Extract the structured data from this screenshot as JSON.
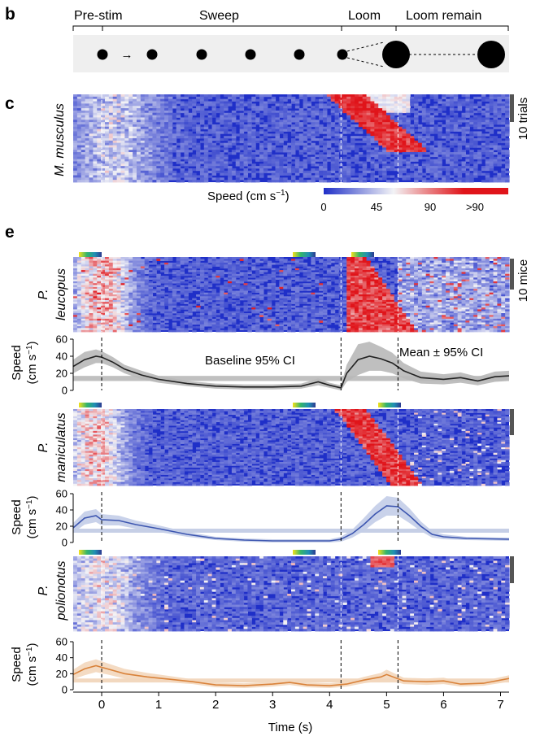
{
  "panels": {
    "b": "b",
    "c": "c",
    "e": "e"
  },
  "stimulus": {
    "phases": [
      "Pre-stim",
      "Sweep",
      "Loom",
      "Loom remain"
    ],
    "arrow": "→"
  },
  "colorbar": {
    "label": "Speed (cm s",
    "label_exp": "−1",
    "label_close": ")",
    "ticks": [
      "0",
      "45",
      "90",
      ">90"
    ]
  },
  "species": {
    "musculus": "M. musculus",
    "leucopus_1": "P.",
    "leucopus_2": "leucopus",
    "maniculatus_1": "P.",
    "maniculatus_2": "maniculatus",
    "polionotus_1": "P.",
    "polionotus_2": "polionotus"
  },
  "scalebars": {
    "trials": "10 trials",
    "mice": "10 mice"
  },
  "speed_axis": {
    "label_1": "Speed",
    "label_2": "(cm s",
    "label_exp": "−1",
    "label_close": ")"
  },
  "annotations": {
    "baseline": "Baseline 95% CI",
    "mean": "Mean ± 95% CI"
  },
  "colors": {
    "heatmap_low": "#1f2fc8",
    "heatmap_mid": "#f3f3f6",
    "heatmap_high": "#e0141a",
    "leucopus": "#222222",
    "maniculatus": "#3d56b0",
    "polionotus": "#d9823a",
    "leucopus_band": "#c0c0c0",
    "maniculatus_band": "#c6cfe6",
    "polionotus_band": "#f2d8bf"
  },
  "chart_data": [
    {
      "type": "line",
      "title": "P. leucopus",
      "xlabel": "Time (s)",
      "ylabel": "Speed (cm s−1)",
      "xlim": [
        -0.5,
        7.15
      ],
      "ylim": [
        0,
        60
      ],
      "x_ticks": [
        "0",
        "1",
        "2",
        "3",
        "4",
        "5",
        "6",
        "7"
      ],
      "y_ticks": [
        "0",
        "20",
        "40",
        "60"
      ],
      "event_lines": [
        0,
        4.2,
        5.2
      ],
      "baseline_ci": [
        11,
        17
      ],
      "x": [
        -0.5,
        -0.3,
        -0.1,
        0.0,
        0.2,
        0.4,
        0.7,
        1.0,
        1.5,
        2.0,
        2.5,
        3.0,
        3.5,
        3.8,
        4.0,
        4.2,
        4.3,
        4.5,
        4.7,
        4.9,
        5.1,
        5.3,
        5.6,
        6.0,
        6.3,
        6.6,
        6.9,
        7.15
      ],
      "values": [
        28,
        36,
        40,
        39,
        33,
        25,
        18,
        13,
        8,
        5,
        4,
        4,
        5,
        10,
        6,
        3,
        20,
        36,
        40,
        37,
        32,
        23,
        15,
        13,
        15,
        11,
        16,
        17
      ],
      "ci": [
        8,
        9,
        8,
        7,
        6,
        5,
        5,
        4,
        3,
        3,
        3,
        3,
        3,
        4,
        3,
        3,
        10,
        18,
        17,
        14,
        12,
        9,
        7,
        6,
        6,
        5,
        6,
        6
      ]
    },
    {
      "type": "line",
      "title": "P. maniculatus",
      "xlabel": "Time (s)",
      "ylabel": "Speed (cm s−1)",
      "xlim": [
        -0.5,
        7.15
      ],
      "ylim": [
        0,
        60
      ],
      "x_ticks": [
        "0",
        "1",
        "2",
        "3",
        "4",
        "5",
        "6",
        "7"
      ],
      "y_ticks": [
        "0",
        "20",
        "40",
        "60"
      ],
      "event_lines": [
        0,
        4.2,
        5.2
      ],
      "baseline_ci": [
        12,
        17
      ],
      "x": [
        -0.5,
        -0.3,
        -0.1,
        0.0,
        0.3,
        0.6,
        1.0,
        1.5,
        2.0,
        2.5,
        3.0,
        3.5,
        4.0,
        4.2,
        4.4,
        4.6,
        4.8,
        5.0,
        5.2,
        5.4,
        5.6,
        5.8,
        6.0,
        6.4,
        7.15
      ],
      "values": [
        18,
        30,
        33,
        28,
        27,
        22,
        17,
        10,
        5,
        3,
        2,
        2,
        2,
        4,
        11,
        22,
        35,
        45,
        44,
        33,
        20,
        10,
        7,
        5,
        4
      ],
      "ci": [
        6,
        8,
        8,
        7,
        6,
        5,
        4,
        3,
        2,
        2,
        2,
        2,
        2,
        3,
        5,
        8,
        10,
        12,
        11,
        9,
        6,
        4,
        3,
        2,
        2
      ]
    },
    {
      "type": "line",
      "title": "P. polionotus",
      "xlabel": "Time (s)",
      "ylabel": "Speed (cm s−1)",
      "xlim": [
        -0.5,
        7.15
      ],
      "ylim": [
        0,
        60
      ],
      "x_ticks": [
        "0",
        "1",
        "2",
        "3",
        "4",
        "5",
        "6",
        "7"
      ],
      "y_ticks": [
        "0",
        "20",
        "40",
        "60"
      ],
      "event_lines": [
        0,
        4.2,
        5.2
      ],
      "baseline_ci": [
        9,
        14
      ],
      "x": [
        -0.5,
        -0.3,
        -0.1,
        0.1,
        0.4,
        0.8,
        1.2,
        1.6,
        2.0,
        2.5,
        3.0,
        3.3,
        3.6,
        4.0,
        4.3,
        4.6,
        4.9,
        5.0,
        5.3,
        5.7,
        6.0,
        6.3,
        6.7,
        7.15
      ],
      "values": [
        19,
        26,
        30,
        26,
        20,
        16,
        13,
        10,
        6,
        5,
        7,
        9,
        6,
        5,
        7,
        12,
        16,
        19,
        11,
        10,
        11,
        7,
        8,
        14
      ],
      "ci": [
        6,
        8,
        8,
        7,
        6,
        5,
        4,
        3,
        3,
        3,
        3,
        3,
        3,
        3,
        3,
        4,
        5,
        6,
        4,
        4,
        4,
        3,
        3,
        4
      ]
    }
  ]
}
